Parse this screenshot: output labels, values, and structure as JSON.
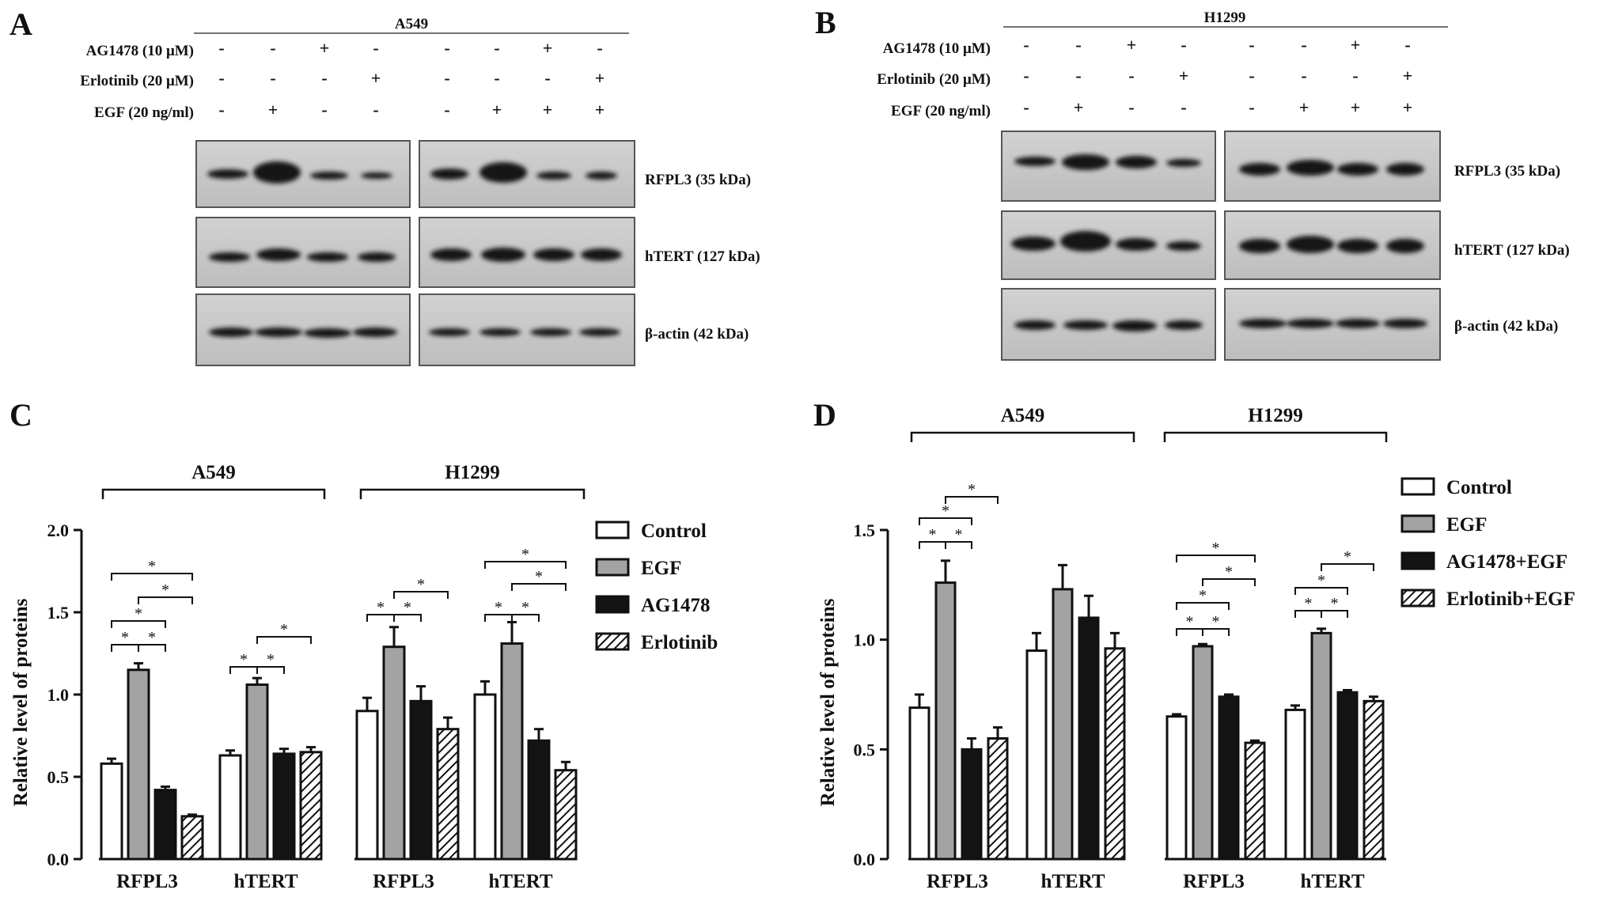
{
  "panels": {
    "A": {
      "letter": "A",
      "cell_line": "A549",
      "rows": [
        {
          "label": "AG1478 (10 μM)",
          "signs": [
            "-",
            "-",
            "+",
            "-",
            "-",
            "-",
            "+",
            "-"
          ]
        },
        {
          "label": "Erlotinib (20 μM)",
          "signs": [
            "-",
            "-",
            "-",
            "+",
            "-",
            "-",
            "-",
            "+"
          ]
        },
        {
          "label": "EGF (20 ng/ml)",
          "signs": [
            "-",
            "+",
            "-",
            "-",
            "-",
            "+",
            "+",
            "+"
          ]
        }
      ],
      "blot_labels": [
        "RFPL3 (35 kDa)",
        "hTERT (127 kDa)",
        "β-actin (42 kDa)"
      ]
    },
    "B": {
      "letter": "B",
      "cell_line": "H1299",
      "rows": [
        {
          "label": "AG1478 (10 μM)",
          "signs": [
            "-",
            "-",
            "+",
            "-",
            "-",
            "-",
            "+",
            "-"
          ]
        },
        {
          "label": "Erlotinib (20 μM)",
          "signs": [
            "-",
            "-",
            "-",
            "+",
            "-",
            "-",
            "-",
            "+"
          ]
        },
        {
          "label": "EGF (20 ng/ml)",
          "signs": [
            "-",
            "+",
            "-",
            "-",
            "-",
            "+",
            "+",
            "+"
          ]
        }
      ],
      "blot_labels": [
        "RFPL3 (35 kDa)",
        "hTERT (127 kDa)",
        "β-actin (42 kDa)"
      ]
    },
    "C": {
      "letter": "C"
    },
    "D": {
      "letter": "D"
    }
  },
  "chart_data": [
    {
      "id": "C",
      "type": "bar",
      "ylabel": "Relative level of proteins",
      "ylim": [
        0,
        2.0
      ],
      "yticks": [
        "0.0",
        "0.5",
        "1.0",
        "1.5",
        "2.0"
      ],
      "groups": [
        "A549",
        "H1299"
      ],
      "categories": [
        "RFPL3",
        "hTERT",
        "RFPL3",
        "hTERT"
      ],
      "legend": [
        "Control",
        "EGF",
        "AG1478",
        "Erlotinib"
      ],
      "series": [
        {
          "name": "Control",
          "values": [
            0.58,
            0.63,
            0.9,
            1.0
          ],
          "errors": [
            0.03,
            0.03,
            0.08,
            0.08
          ]
        },
        {
          "name": "EGF",
          "values": [
            1.15,
            1.06,
            1.29,
            1.31
          ],
          "errors": [
            0.04,
            0.04,
            0.12,
            0.13
          ]
        },
        {
          "name": "AG1478",
          "values": [
            0.42,
            0.64,
            0.96,
            0.72
          ],
          "errors": [
            0.02,
            0.03,
            0.09,
            0.07
          ]
        },
        {
          "name": "Erlotinib",
          "values": [
            0.26,
            0.65,
            0.79,
            0.54
          ],
          "errors": [
            0.01,
            0.03,
            0.07,
            0.05
          ]
        }
      ],
      "annotation": "*"
    },
    {
      "id": "D",
      "type": "bar",
      "ylabel": "Relative level of proteins",
      "ylim": [
        0,
        1.5
      ],
      "yticks": [
        "0.0",
        "0.5",
        "1.0",
        "1.5"
      ],
      "groups": [
        "A549",
        "H1299"
      ],
      "categories": [
        "RFPL3",
        "hTERT",
        "RFPL3",
        "hTERT"
      ],
      "legend": [
        "Control",
        "EGF",
        "AG1478+EGF",
        "Erlotinib+EGF"
      ],
      "series": [
        {
          "name": "Control",
          "values": [
            0.69,
            0.95,
            0.65,
            0.68
          ],
          "errors": [
            0.06,
            0.08,
            0.01,
            0.02
          ]
        },
        {
          "name": "EGF",
          "values": [
            1.26,
            1.23,
            0.97,
            1.03
          ],
          "errors": [
            0.1,
            0.11,
            0.01,
            0.02
          ]
        },
        {
          "name": "AG1478+EGF",
          "values": [
            0.5,
            1.1,
            0.74,
            0.76
          ],
          "errors": [
            0.05,
            0.1,
            0.01,
            0.01
          ]
        },
        {
          "name": "Erlotinib+EGF",
          "values": [
            0.55,
            0.96,
            0.53,
            0.72
          ],
          "errors": [
            0.05,
            0.07,
            0.01,
            0.02
          ]
        }
      ],
      "annotation": "*"
    }
  ],
  "colors": {
    "Control": "#ffffff",
    "EGF": "#a3a3a3",
    "AG1478": "#141414",
    "Erlotinib": "hatch",
    "blot_bg": "#c9c9c9",
    "band": "#161616"
  }
}
